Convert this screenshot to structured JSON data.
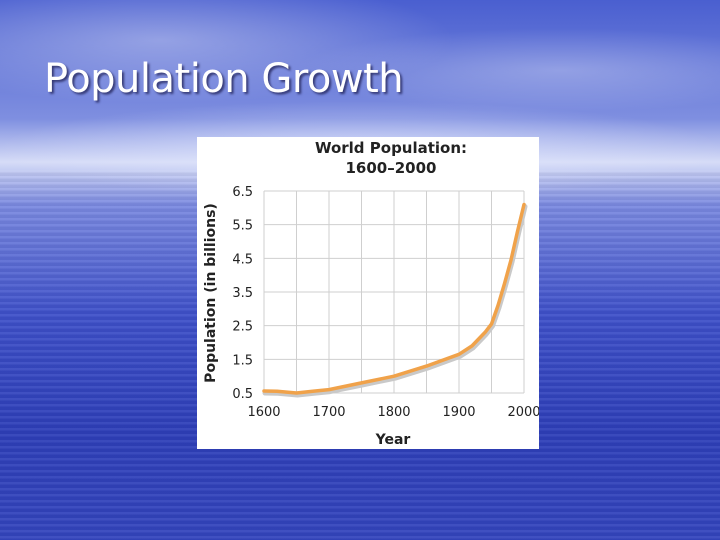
{
  "slide": {
    "title": "Population Growth"
  },
  "colors": {
    "line": "#f0a24a",
    "line_shadow": "#c9c9c9",
    "grid": "#cfcfcf"
  },
  "chart_data": {
    "type": "line",
    "title_lines": [
      "World Population:",
      "1600–2000"
    ],
    "xlabel": "Year",
    "ylabel": "Population (in billions)",
    "xlim": [
      1600,
      2000
    ],
    "ylim": [
      0.5,
      6.5
    ],
    "x_ticks": [
      1600,
      1700,
      1800,
      1900,
      2000
    ],
    "y_ticks": [
      0.5,
      1.5,
      2.5,
      3.5,
      4.5,
      5.5,
      6.5
    ],
    "grid": true,
    "series": [
      {
        "x": [
          1600,
          1620,
          1650,
          1675,
          1700,
          1750,
          1800,
          1850,
          1900,
          1920,
          1940,
          1950,
          1960,
          1970,
          1980,
          1990,
          2000
        ],
        "y": [
          0.56,
          0.55,
          0.5,
          0.55,
          0.6,
          0.8,
          1.0,
          1.3,
          1.65,
          1.9,
          2.3,
          2.55,
          3.1,
          3.75,
          4.45,
          5.3,
          6.1
        ]
      }
    ]
  }
}
